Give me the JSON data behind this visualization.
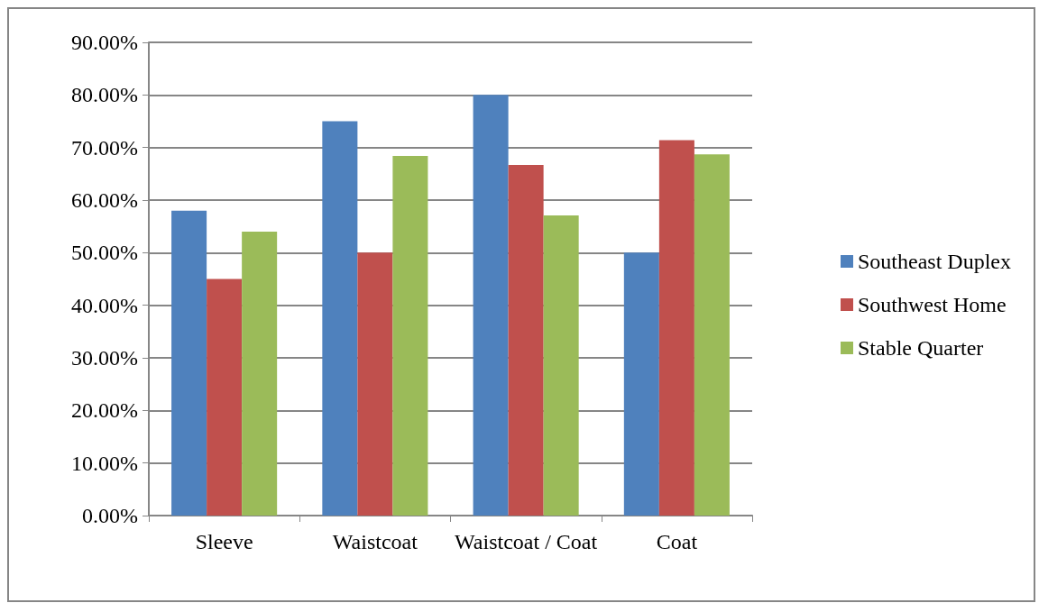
{
  "chart_data": {
    "type": "bar",
    "categories": [
      "Sleeve",
      "Waistcoat",
      "Waistcoat / Coat",
      "Coat"
    ],
    "series": [
      {
        "name": "Southeast Duplex",
        "color": "#4f81bd",
        "values": [
          58.0,
          75.0,
          80.0,
          50.0
        ]
      },
      {
        "name": "Southwest Home",
        "color": "#c0504d",
        "values": [
          45.0,
          50.0,
          66.7,
          71.4
        ]
      },
      {
        "name": "Stable Quarter",
        "color": "#9bbb59",
        "values": [
          54.0,
          68.4,
          57.1,
          68.7
        ]
      }
    ],
    "ylim": [
      0,
      90
    ],
    "yticks": [
      {
        "value": 0,
        "label": "0.00%"
      },
      {
        "value": 10,
        "label": "10.00%"
      },
      {
        "value": 20,
        "label": "20.00%"
      },
      {
        "value": 30,
        "label": "30.00%"
      },
      {
        "value": 40,
        "label": "40.00%"
      },
      {
        "value": 50,
        "label": "50.00%"
      },
      {
        "value": 60,
        "label": "60.00%"
      },
      {
        "value": 70,
        "label": "70.00%"
      },
      {
        "value": 80,
        "label": "80.00%"
      },
      {
        "value": 90,
        "label": "90.00%"
      }
    ],
    "grid": "y",
    "legend": "right"
  }
}
